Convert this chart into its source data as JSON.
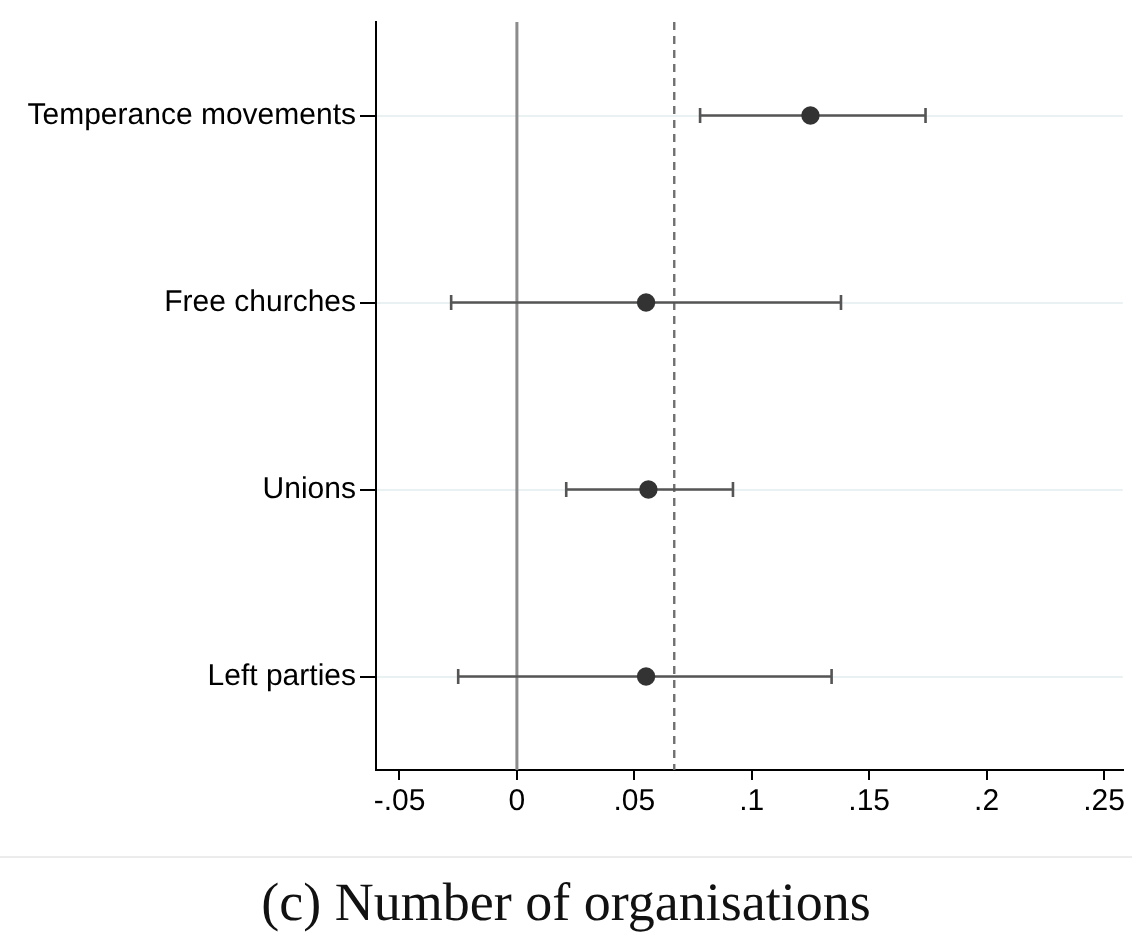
{
  "chart_data": {
    "type": "scatter",
    "orientation": "horizontal",
    "categories": [
      "Temperance movements",
      "Free churches",
      "Unions",
      "Left parties"
    ],
    "values": [
      0.125,
      0.055,
      0.056,
      0.055
    ],
    "errors": [
      [
        0.078,
        0.174
      ],
      [
        -0.028,
        0.138
      ],
      [
        0.021,
        0.092
      ],
      [
        -0.025,
        0.134
      ]
    ],
    "color": "#333333",
    "marker": "circle",
    "xlim": [
      -0.06,
      0.258
    ],
    "xticks": [
      {
        "value": -0.05,
        "label": "-.05"
      },
      0,
      {
        "value": 0.05,
        "label": ".05"
      },
      {
        "value": 0.1,
        "label": ".1"
      },
      {
        "value": 0.15,
        "label": ".15"
      },
      {
        "value": 0.2,
        "label": ".2"
      },
      {
        "value": 0.25,
        "label": ".25"
      }
    ],
    "ref_lines": [
      {
        "axis": "x",
        "value": 0,
        "color": "#8c8c8c",
        "line_style": "solid"
      },
      {
        "axis": "x",
        "value": 0.067,
        "color": "#707070",
        "line_style": "dashed"
      }
    ],
    "grid": "y",
    "annotations": [
      "(c) Number of organisations"
    ]
  }
}
